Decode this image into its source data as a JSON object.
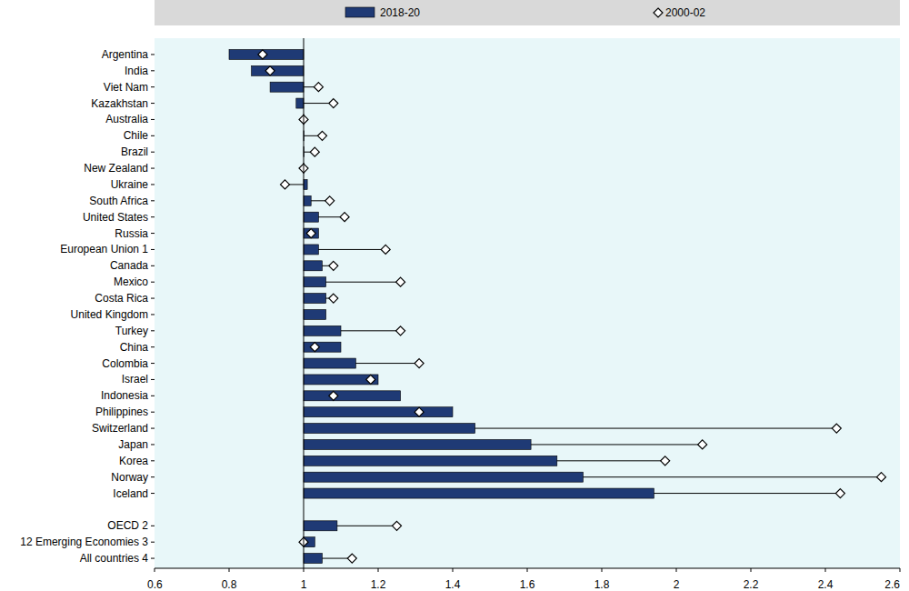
{
  "chart_data": {
    "type": "bar",
    "orientation": "horizontal",
    "legend": "top",
    "grid": false,
    "baseline": 1,
    "categories": [
      "Argentina",
      "India",
      "Viet Nam",
      "Kazakhstan",
      "Australia",
      "Chile",
      "Brazil",
      "New Zealand",
      "Ukraine",
      "South Africa",
      "United States",
      "Russia",
      "European Union 1",
      "Canada",
      "Mexico",
      "Costa Rica",
      "United Kingdom",
      "Turkey",
      "China",
      "Colombia",
      "Israel",
      "Indonesia",
      "Philippines",
      "Switzerland",
      "Japan",
      "Korea",
      "Norway",
      "Iceland",
      null,
      "OECD 2",
      "12 Emerging Economies 3",
      "All countries 4"
    ],
    "series": [
      {
        "name": "2018-20",
        "type": "bar",
        "color": "#1f3a75",
        "values": [
          0.8,
          0.86,
          0.91,
          0.98,
          1.0,
          1.0,
          1.0,
          1.0,
          1.01,
          1.02,
          1.04,
          1.04,
          1.04,
          1.05,
          1.06,
          1.06,
          1.06,
          1.1,
          1.1,
          1.14,
          1.2,
          1.26,
          1.4,
          1.46,
          1.61,
          1.68,
          1.75,
          1.94,
          null,
          1.09,
          1.03,
          1.05
        ]
      },
      {
        "name": "2000-02",
        "type": "scatter",
        "marker": "diamond",
        "color": "#ffffff",
        "values": [
          0.89,
          0.91,
          1.04,
          1.08,
          1.0,
          1.05,
          1.03,
          1.0,
          0.95,
          1.07,
          1.11,
          1.02,
          1.22,
          1.08,
          1.26,
          1.08,
          null,
          1.26,
          1.03,
          1.31,
          1.18,
          1.08,
          1.31,
          2.43,
          2.07,
          1.97,
          2.55,
          2.44,
          null,
          1.25,
          1.0,
          1.13
        ]
      }
    ],
    "xlim": [
      0.6,
      2.6
    ],
    "xticks": [
      0.6,
      0.8,
      1,
      1.2,
      1.4,
      1.6,
      1.8,
      2,
      2.2,
      2.4,
      2.6
    ]
  }
}
